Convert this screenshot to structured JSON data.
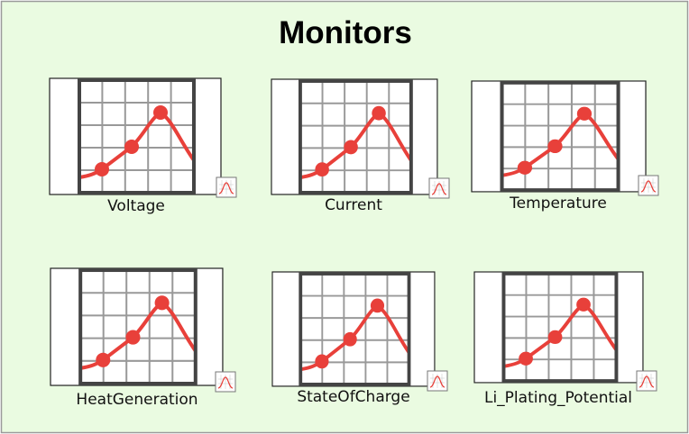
{
  "header": {
    "title": "Monitors"
  },
  "monitors": [
    {
      "label": "Voltage"
    },
    {
      "label": "Current"
    },
    {
      "label": "Temperature"
    },
    {
      "label": "HeatGeneration"
    },
    {
      "label": "StateOfCharge"
    },
    {
      "label": "Li_Plating_Potential"
    }
  ]
}
